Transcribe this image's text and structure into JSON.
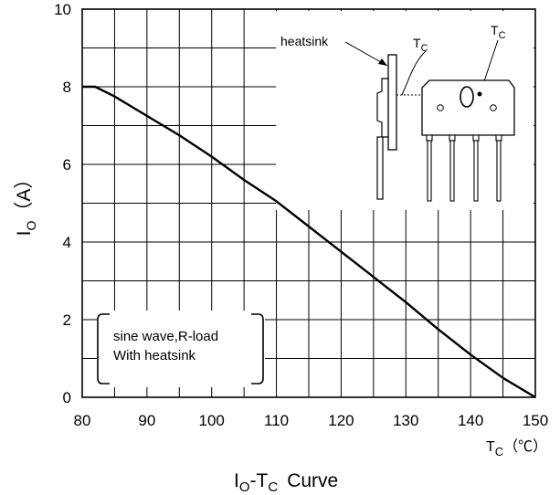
{
  "chart_data": {
    "type": "line",
    "title": {
      "main": "I",
      "sub1": "O",
      "mid": "-T",
      "sub2": "C",
      "tail": "Curve"
    },
    "ylabel": {
      "main": "I",
      "sub": "O",
      "tail": "（A）"
    },
    "xlabel": {
      "main": "T",
      "sub": "C",
      "tail": "（℃）"
    },
    "xlim": [
      80,
      150
    ],
    "ylim": [
      0,
      10
    ],
    "x_ticks": [
      "80",
      "90",
      "100",
      "110",
      "120",
      "130",
      "140",
      "150"
    ],
    "y_ticks": [
      "0",
      "2",
      "4",
      "6",
      "8",
      "10"
    ],
    "x_minor_step": 5,
    "y_minor_step": 1,
    "grid": true,
    "series": [
      {
        "color": "#000000",
        "x": [
          80,
          82,
          85,
          88,
          91,
          95,
          100,
          105,
          110,
          115,
          120,
          125,
          130,
          135,
          140,
          145,
          150
        ],
        "y": [
          8.0,
          8.0,
          7.75,
          7.45,
          7.15,
          6.75,
          6.2,
          5.6,
          5.05,
          4.4,
          3.75,
          3.1,
          2.45,
          1.75,
          1.1,
          0.5,
          0.0
        ]
      }
    ],
    "annotations": {
      "condition_line1": "sine wave,R-load",
      "condition_line2": "With heatsink",
      "inset_heatsink_label": "heatsink",
      "inset_tc_main": "T",
      "inset_tc_sub": "C"
    }
  }
}
